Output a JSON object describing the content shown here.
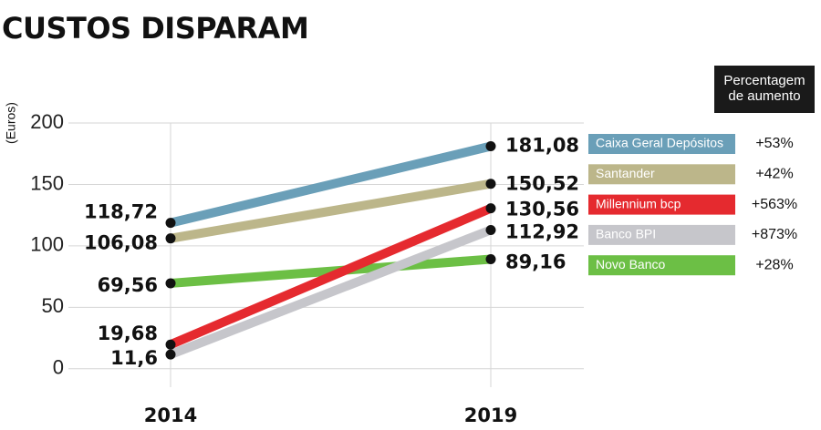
{
  "chart_data": {
    "type": "line",
    "title": "CUSTOS DISPARAM",
    "y_label": "(Euros)",
    "legend_title": "Percentagem de aumento",
    "categories": [
      "2014",
      "2019"
    ],
    "series": [
      {
        "name": "Caixa Geral Depósitos",
        "color": "#6a9fb8",
        "values": [
          118.72,
          181.08
        ],
        "value_labels": [
          "118,72",
          "181,08"
        ],
        "increase": "+53%"
      },
      {
        "name": "Santander",
        "color": "#bcb68a",
        "values": [
          106.08,
          150.52
        ],
        "value_labels": [
          "106,08",
          "150,52"
        ],
        "increase": "+42%"
      },
      {
        "name": "Millennium bcp",
        "color": "#e52a2f",
        "values": [
          19.68,
          130.56
        ],
        "value_labels": [
          "19,68",
          "130,56"
        ],
        "increase": "+563%"
      },
      {
        "name": "Banco BPI",
        "color": "#c6c6cb",
        "values": [
          11.6,
          112.92
        ],
        "value_labels": [
          "11,6",
          "112,92"
        ],
        "increase": "+873%"
      },
      {
        "name": "Novo Banco",
        "color": "#6cbf45",
        "values": [
          69.56,
          89.16
        ],
        "value_labels": [
          "69,56",
          "89,16"
        ],
        "increase": "+28%"
      }
    ],
    "ylim": [
      -15,
      200
    ],
    "yticks": [
      0,
      50,
      100,
      150,
      200
    ],
    "grid": true
  }
}
